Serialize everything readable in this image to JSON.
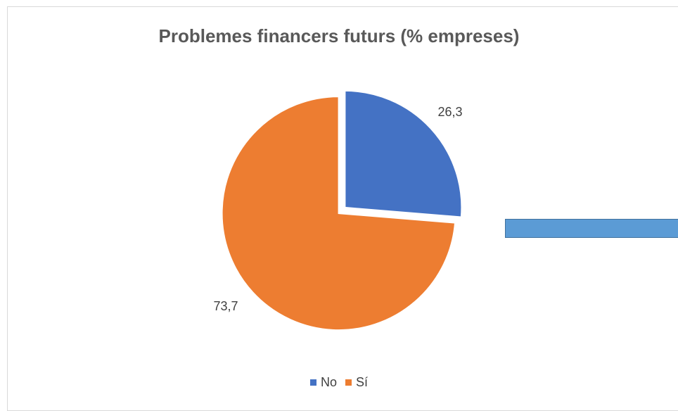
{
  "chart_data": {
    "type": "pie",
    "title": "Problemes financers futurs (% empreses)",
    "categories": [
      "No",
      "Sí"
    ],
    "values": [
      26.3,
      73.7
    ],
    "data_labels": [
      "26,3",
      "73,7"
    ],
    "colors": [
      "#4472c4",
      "#ed7d31"
    ],
    "legend_position": "bottom",
    "exploded": true
  },
  "legend": {
    "items": [
      {
        "label": "No",
        "color": "#4472c4"
      },
      {
        "label": "Sí",
        "color": "#ed7d31"
      }
    ]
  },
  "decoration": {
    "shape_color": "#5b9bd5"
  }
}
